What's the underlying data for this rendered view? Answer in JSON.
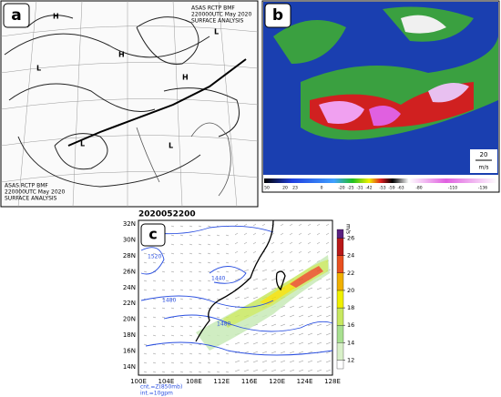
{
  "panel_a": {
    "label": "a",
    "header_top": [
      "ASAS RCTP BMF",
      "220000UTC May 2020",
      "SURFACE ANALYSIS"
    ],
    "header_bottom": [
      "ASAS RCTP BMF",
      "220000UTC May 2020",
      "SURFACE ANALYSIS"
    ],
    "pressure_centers": [
      "H",
      "L",
      "L",
      "H",
      "L",
      "H",
      "L"
    ]
  },
  "panel_b": {
    "label": "b",
    "colorbar_labels": [
      "50",
      "20",
      "23",
      "0",
      "-20",
      "-25",
      "-31",
      "-42",
      "-53",
      "-59",
      "-63",
      "-80",
      "-110",
      "-136"
    ],
    "vector_scale": "20",
    "vector_unit": "m/s"
  },
  "panel_c": {
    "label": "c",
    "title": "2020052200",
    "lat_labels": [
      "32N",
      "30N",
      "28N",
      "26N",
      "24N",
      "22N",
      "20N",
      "18N",
      "16N",
      "14N"
    ],
    "lon_labels": [
      "100E",
      "104E",
      "108E",
      "112E",
      "116E",
      "120E",
      "124E",
      "128E"
    ],
    "contour_labels": [
      "1520",
      "1480",
      "1440",
      "1480"
    ],
    "notes": [
      "cnt.=Z(850mb)",
      "int.=10gpm"
    ],
    "colorbar": {
      "unit": "m/s",
      "ylim": [
        11,
        27
      ],
      "yticks": [
        12,
        14,
        16,
        18,
        20,
        22,
        24,
        26
      ],
      "colors": [
        "#ffffff",
        "#d8f0c8",
        "#a8e090",
        "#c8e860",
        "#f0f000",
        "#f0b000",
        "#e85020",
        "#b81818",
        "#5a2080"
      ]
    }
  }
}
